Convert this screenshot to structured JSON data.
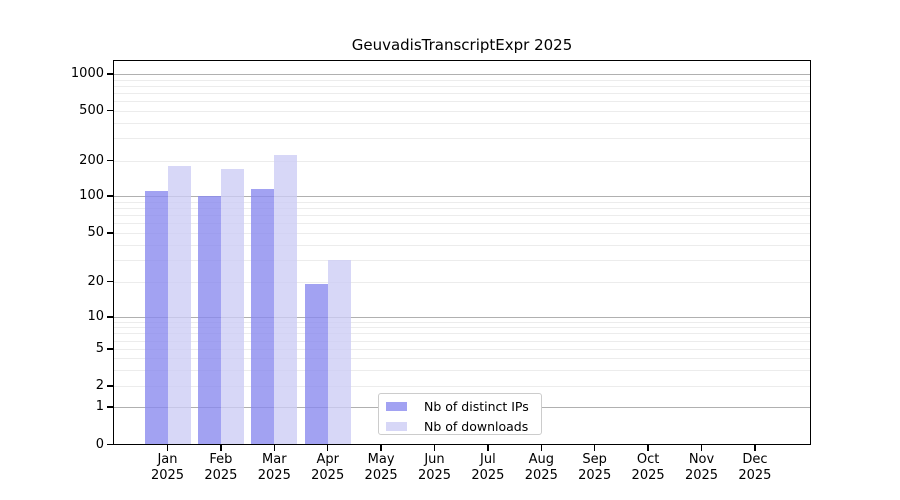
{
  "chart_data": {
    "type": "bar",
    "title": "GeuvadisTranscriptExpr 2025",
    "categories": [
      "Jan 2025",
      "Feb 2025",
      "Mar 2025",
      "Apr 2025",
      "May 2025",
      "Jun 2025",
      "Jul 2025",
      "Aug 2025",
      "Sep 2025",
      "Oct 2025",
      "Nov 2025",
      "Dec 2025"
    ],
    "x_tick_labels": [
      {
        "month": "Jan",
        "year": "2025"
      },
      {
        "month": "Feb",
        "year": "2025"
      },
      {
        "month": "Mar",
        "year": "2025"
      },
      {
        "month": "Apr",
        "year": "2025"
      },
      {
        "month": "May",
        "year": "2025"
      },
      {
        "month": "Jun",
        "year": "2025"
      },
      {
        "month": "Jul",
        "year": "2025"
      },
      {
        "month": "Aug",
        "year": "2025"
      },
      {
        "month": "Sep",
        "year": "2025"
      },
      {
        "month": "Oct",
        "year": "2025"
      },
      {
        "month": "Nov",
        "year": "2025"
      },
      {
        "month": "Dec",
        "year": "2025"
      }
    ],
    "series": [
      {
        "name": "Nb of distinct IPs",
        "color": "#8888ee",
        "values": [
          111,
          100,
          114,
          19,
          0,
          0,
          0,
          0,
          0,
          0,
          0,
          0
        ]
      },
      {
        "name": "Nb of downloads",
        "color": "#ccccf5",
        "values": [
          180,
          170,
          220,
          30,
          0,
          0,
          0,
          0,
          0,
          0,
          0,
          0
        ]
      }
    ],
    "y_scale": "symlog",
    "y_tick_labels": [
      0,
      1,
      2,
      5,
      10,
      20,
      50,
      100,
      200,
      500,
      1000
    ],
    "ylim": [
      0,
      1300
    ],
    "grid": "on",
    "grid_major_color": "#b0b0b0",
    "grid_minor_color": "#ececec",
    "grid_minor_values": [
      2,
      3,
      4,
      5,
      6,
      7,
      8,
      9,
      20,
      30,
      40,
      50,
      60,
      70,
      80,
      90,
      200,
      300,
      400,
      500,
      600,
      700,
      800,
      900
    ],
    "grid_major_values": [
      1,
      10,
      100,
      1000
    ],
    "legend_position": "lower center"
  }
}
